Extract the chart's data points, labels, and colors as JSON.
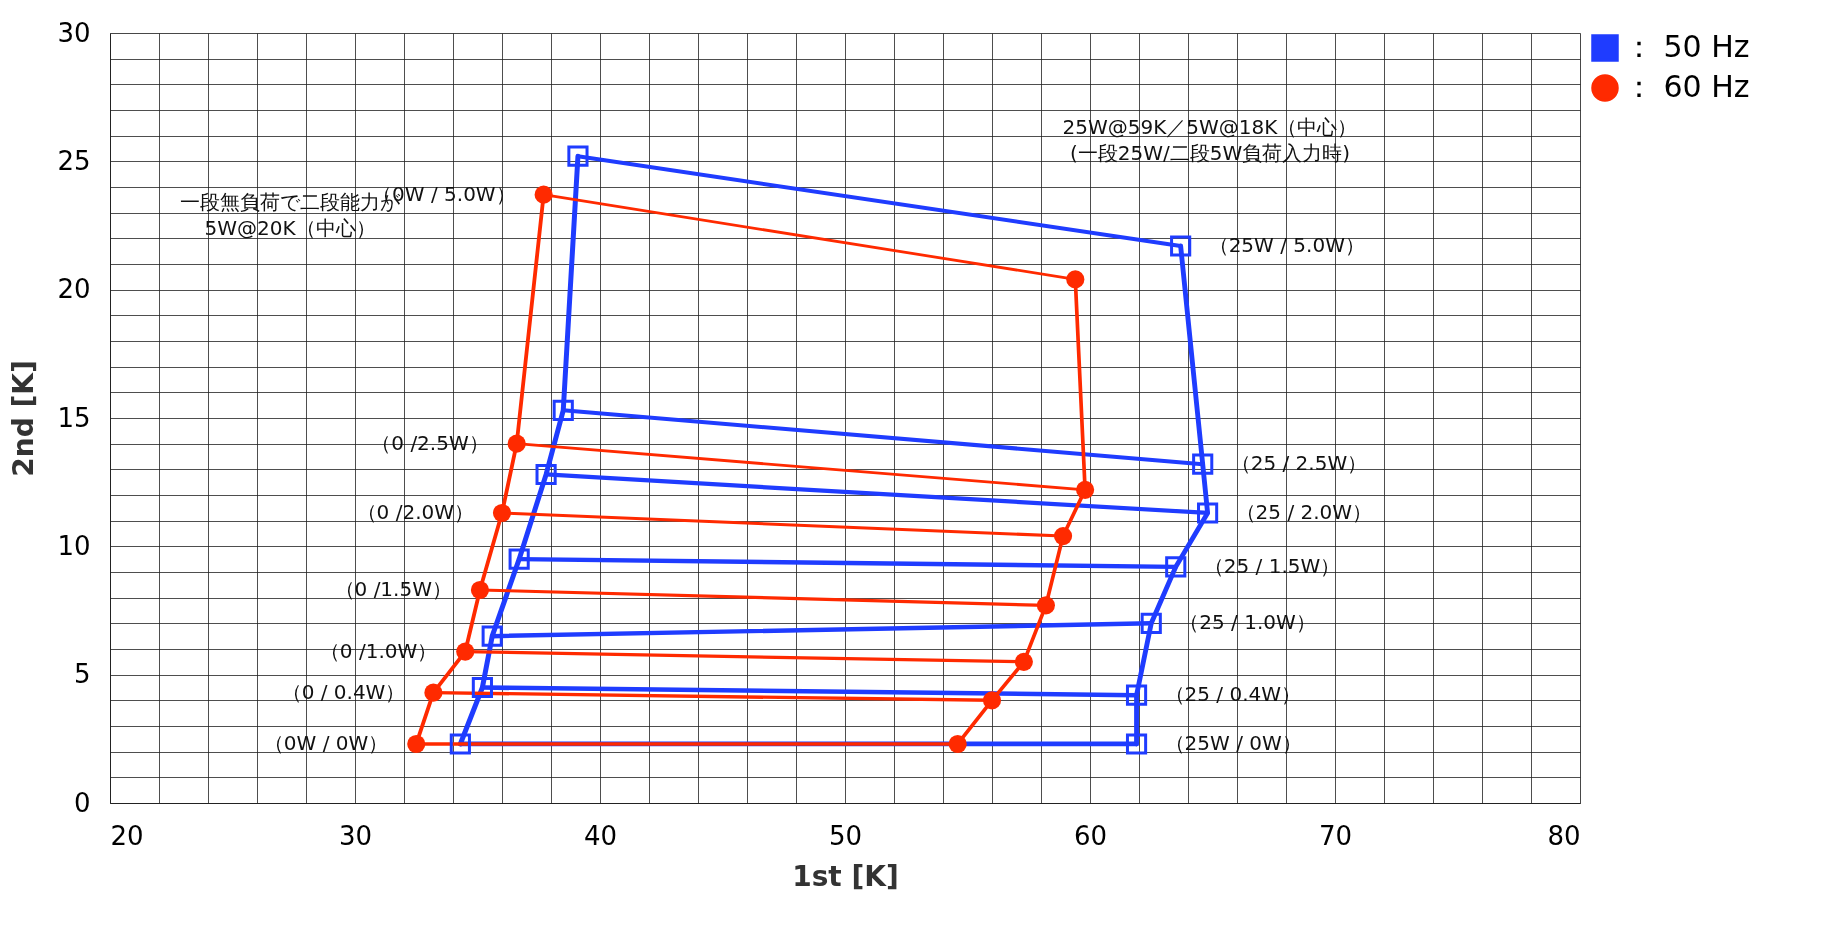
{
  "chart_data": {
    "type": "scatter",
    "xlabel": "1st [K]",
    "ylabel": "2nd [K]",
    "xlim": [
      20,
      80
    ],
    "ylim": [
      0,
      30
    ],
    "xticks": [
      20,
      {
        "value": 22,
        "label": null
      },
      {
        "value": 24,
        "label": null
      },
      {
        "value": 26,
        "label": null
      },
      {
        "value": 28,
        "label": null
      },
      30,
      {
        "value": 32,
        "label": null
      },
      {
        "value": 34,
        "label": null
      },
      {
        "value": 36,
        "label": null
      },
      {
        "value": 38,
        "label": null
      },
      40,
      {
        "value": 42,
        "label": null
      },
      {
        "value": 44,
        "label": null
      },
      {
        "value": 46,
        "label": null
      },
      {
        "value": 48,
        "label": null
      },
      50,
      {
        "value": 52,
        "label": null
      },
      {
        "value": 54,
        "label": null
      },
      {
        "value": 56,
        "label": null
      },
      {
        "value": 58,
        "label": null
      },
      60,
      {
        "value": 62,
        "label": null
      },
      {
        "value": 64,
        "label": null
      },
      {
        "value": 66,
        "label": null
      },
      {
        "value": 68,
        "label": null
      },
      70,
      {
        "value": 72,
        "label": null
      },
      {
        "value": 74,
        "label": null
      },
      {
        "value": 76,
        "label": null
      },
      {
        "value": 78,
        "label": null
      },
      80
    ],
    "yticks": [
      0,
      {
        "value": 1,
        "label": null
      },
      {
        "value": 2,
        "label": null
      },
      {
        "value": 3,
        "label": null
      },
      {
        "value": 4,
        "label": null
      },
      5,
      {
        "value": 6,
        "label": null
      },
      {
        "value": 7,
        "label": null
      },
      {
        "value": 8,
        "label": null
      },
      {
        "value": 9,
        "label": null
      },
      10,
      {
        "value": 11,
        "label": null
      },
      {
        "value": 12,
        "label": null
      },
      {
        "value": 13,
        "label": null
      },
      {
        "value": 14,
        "label": null
      },
      15,
      {
        "value": 16,
        "label": null
      },
      {
        "value": 17,
        "label": null
      },
      {
        "value": 18,
        "label": null
      },
      {
        "value": 19,
        "label": null
      },
      20,
      {
        "value": 21,
        "label": null
      },
      {
        "value": 22,
        "label": null
      },
      {
        "value": 23,
        "label": null
      },
      {
        "value": 24,
        "label": null
      },
      25,
      {
        "value": 26,
        "label": null
      },
      {
        "value": 27,
        "label": null
      },
      {
        "value": 28,
        "label": null
      },
      {
        "value": 29,
        "label": null
      },
      30
    ],
    "grid": true,
    "legend": "top right",
    "line_style": "solid",
    "series": [
      {
        "type": "line",
        "color": "#1f3cff",
        "x": [
          34.3,
          35.2,
          35.6,
          36.7,
          37.8,
          38.5,
          39.1
        ],
        "values": [
          2.3,
          4.5,
          6.5,
          9.5,
          12.8,
          15.3,
          25.2
        ]
      },
      {
        "type": "line",
        "color": "#1f3cff",
        "x": [
          61.9,
          61.9,
          62.5,
          63.5,
          64.8,
          64.6,
          63.7
        ],
        "values": [
          2.3,
          4.2,
          7.0,
          9.2,
          11.3,
          13.2,
          21.7
        ]
      },
      {
        "type": "line",
        "color": "#1f3cff",
        "x": [
          34.3,
          61.9
        ],
        "values": [
          2.3,
          2.3
        ]
      },
      {
        "type": "line",
        "color": "#1f3cff",
        "x": [
          35.2,
          61.9
        ],
        "values": [
          4.5,
          4.2
        ]
      },
      {
        "type": "line",
        "color": "#1f3cff",
        "x": [
          35.6,
          62.5
        ],
        "values": [
          6.5,
          7.0
        ]
      },
      {
        "type": "line",
        "color": "#1f3cff",
        "x": [
          36.7,
          63.5
        ],
        "values": [
          9.5,
          9.2
        ]
      },
      {
        "type": "line",
        "color": "#1f3cff",
        "x": [
          37.8,
          64.8
        ],
        "values": [
          12.8,
          11.3
        ]
      },
      {
        "type": "line",
        "color": "#1f3cff",
        "x": [
          38.5,
          64.6
        ],
        "values": [
          15.3,
          13.2
        ]
      },
      {
        "type": "line",
        "color": "#1f3cff",
        "x": [
          39.1,
          63.7
        ],
        "values": [
          25.2,
          21.7
        ]
      },
      {
        "type": "line",
        "color": "#ff2a00",
        "x": [
          32.5,
          33.2,
          34.5,
          35.1,
          36.0,
          36.6,
          37.7
        ],
        "values": [
          2.3,
          4.3,
          5.9,
          8.3,
          11.3,
          14.0,
          23.7
        ]
      },
      {
        "type": "line",
        "color": "#ff2a00",
        "x": [
          54.6,
          56.0,
          57.3,
          58.2,
          58.9,
          59.8,
          59.4
        ],
        "values": [
          2.3,
          4.0,
          5.5,
          7.7,
          10.4,
          12.2,
          20.4
        ]
      },
      {
        "type": "line",
        "color": "#ff2a00",
        "x": [
          32.5,
          54.6
        ],
        "values": [
          2.3,
          2.3
        ]
      },
      {
        "type": "line",
        "color": "#ff2a00",
        "x": [
          33.2,
          56.0
        ],
        "values": [
          4.3,
          4.0
        ]
      },
      {
        "type": "line",
        "color": "#ff2a00",
        "x": [
          34.5,
          57.3
        ],
        "values": [
          5.9,
          5.5
        ]
      },
      {
        "type": "line",
        "color": "#ff2a00",
        "x": [
          35.1,
          58.2
        ],
        "values": [
          8.3,
          7.7
        ]
      },
      {
        "type": "line",
        "color": "#ff2a00",
        "x": [
          36.0,
          58.9
        ],
        "values": [
          11.3,
          10.4
        ]
      },
      {
        "type": "line",
        "color": "#ff2a00",
        "x": [
          36.6,
          59.8
        ],
        "values": [
          14.0,
          12.2
        ]
      },
      {
        "type": "line",
        "color": "#ff2a00",
        "x": [
          37.7,
          59.4
        ],
        "values": [
          23.7,
          20.4
        ]
      },
      {
        "name": "：  50 Hz",
        "marker": "square",
        "color": "#1f3cff",
        "x": [
          34.3,
          35.2,
          35.6,
          36.7,
          37.8,
          38.5,
          39.1,
          61.9,
          61.9,
          62.5,
          63.5,
          64.8,
          64.6,
          63.7
        ],
        "values": [
          2.3,
          4.5,
          6.5,
          9.5,
          12.8,
          15.3,
          25.2,
          2.3,
          4.2,
          7.0,
          9.2,
          11.3,
          13.2,
          21.7
        ]
      },
      {
        "name": "：  60 Hz",
        "marker": "circle",
        "color": "#ff2a00",
        "x": [
          32.5,
          33.2,
          34.5,
          35.1,
          36.0,
          36.6,
          37.7,
          54.6,
          56.0,
          57.3,
          58.2,
          58.9,
          59.8,
          59.4
        ],
        "values": [
          2.3,
          4.3,
          5.9,
          8.3,
          11.3,
          14.0,
          23.7,
          2.3,
          4.0,
          5.5,
          7.7,
          10.4,
          12.2,
          20.4
        ]
      }
    ],
    "annotations": [
      {
        "text": "（0W / 5.0W）",
        "x": 37.7,
        "y": 23.7
      },
      {
        "text": "（0 /2.5W）",
        "x": 36.6,
        "y": 14.0
      },
      {
        "text": "（0 /2.0W）",
        "x": 36.0,
        "y": 11.3
      },
      {
        "text": "（0 /1.5W）",
        "x": 35.1,
        "y": 8.3
      },
      {
        "text": "（0 /1.0W）",
        "x": 34.5,
        "y": 5.9
      },
      {
        "text": "（0 / 0.4W）",
        "x": 33.2,
        "y": 4.3
      },
      {
        "text": "（0W / 0W）",
        "x": 32.5,
        "y": 2.3
      },
      {
        "text": "（25W / 5.0W）",
        "x": 63.7,
        "y": 21.7
      },
      {
        "text": "（25 / 2.5W）",
        "x": 64.6,
        "y": 13.2
      },
      {
        "text": "（25 / 2.0W）",
        "x": 64.8,
        "y": 11.3
      },
      {
        "text": "（25 / 1.5W）",
        "x": 63.5,
        "y": 9.2
      },
      {
        "text": "（25 / 1.0W）",
        "x": 62.5,
        "y": 7.0
      },
      {
        "text": "（25 / 0.4W）",
        "x": 61.9,
        "y": 4.2
      },
      {
        "text": "（25W / 0W）",
        "x": 61.9,
        "y": 2.3
      },
      "一段無負荷で二段能力が\n5W@20K（中心）",
      "25W@59K／5W@18K（中心）\n(一段25W/二段5W負荷入力時)"
    ]
  }
}
